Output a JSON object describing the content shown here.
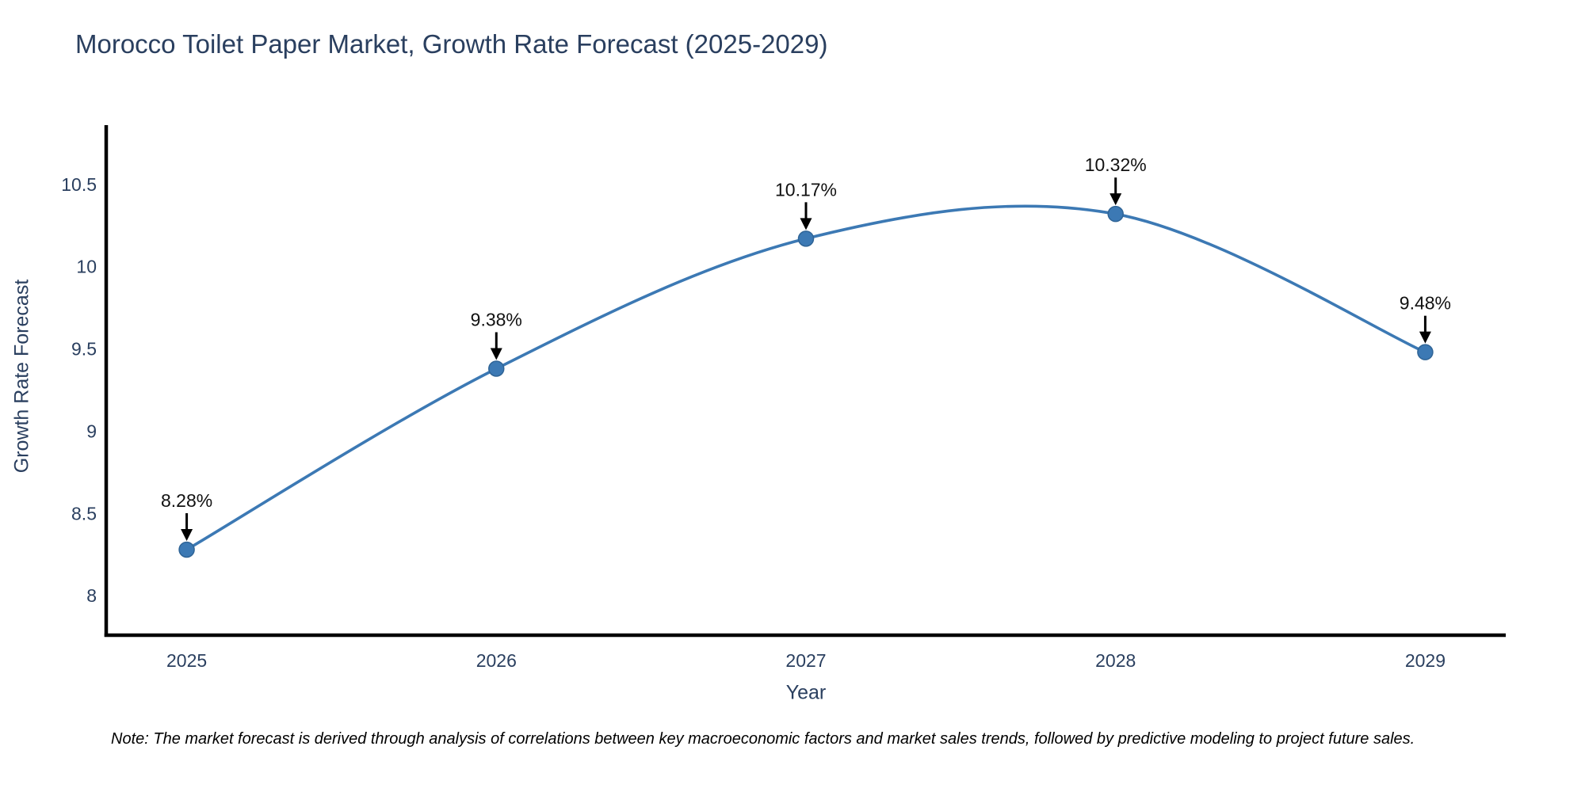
{
  "chart_data": {
    "type": "line",
    "title": "Morocco Toilet Paper Market, Growth Rate Forecast (2025-2029)",
    "xlabel": "Year",
    "ylabel": "Growth Rate Forecast",
    "x": [
      2025,
      2026,
      2027,
      2028,
      2029
    ],
    "series": [
      {
        "name": "Growth Rate Forecast",
        "values": [
          8.28,
          9.38,
          10.17,
          10.32,
          9.48
        ]
      }
    ],
    "point_labels": [
      "8.28%",
      "9.38%",
      "10.17%",
      "10.32%",
      "9.48%"
    ],
    "x_ticks": [
      "2025",
      "2026",
      "2027",
      "2028",
      "2029"
    ],
    "y_ticks": [
      8,
      8.5,
      9,
      9.5,
      10,
      10.5
    ],
    "xlim": [
      2024.74,
      2029.26
    ],
    "ylim": [
      7.76,
      10.86
    ],
    "grid": false,
    "legend": "none",
    "line_shape": "spline",
    "marker": "circle",
    "colors": {
      "line": "#3c79b4",
      "marker": "#3c79b4",
      "marker_edge": "#2f6496",
      "annotation_text": "#111111",
      "annotation_arrow": "#000000",
      "axis_line": "#000000",
      "tick_text": "#2a3f5f",
      "title_text": "#2a3f5f"
    }
  },
  "footnote": {
    "text": "Note: The market forecast is derived through analysis of correlations between key macroeconomic factors and market sales trends, followed by predictive modeling to project future sales."
  }
}
